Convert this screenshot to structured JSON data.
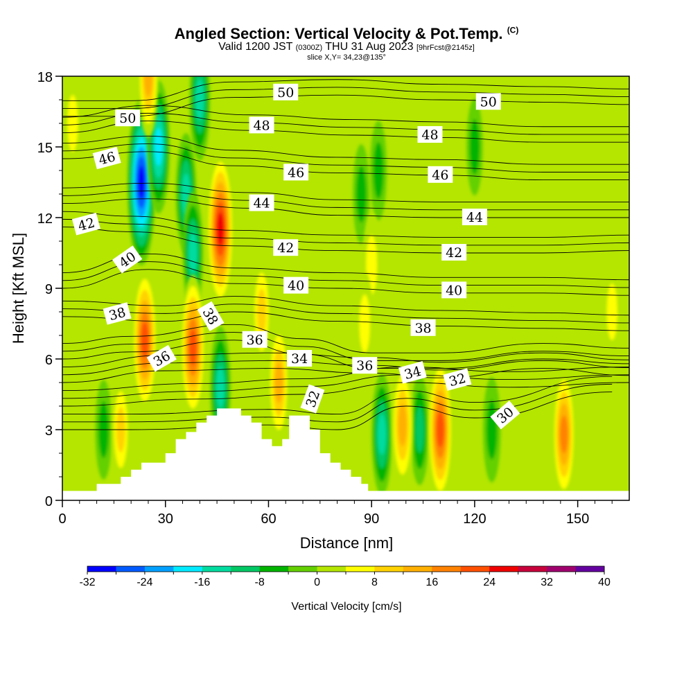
{
  "header": {
    "title": "Angled Section: Vertical Velocity & Pot.Temp.",
    "title_tag": "(C)",
    "valid_prefix": "Valid 1200 JST",
    "valid_utc": "(0300Z)",
    "valid_date": "THU 31 Aug 2023",
    "forecast_tag": "[9hrFcst@2145z]",
    "slice_info": "slice X,Y= 34,23@135°"
  },
  "chart_data": {
    "type": "heatmap",
    "xlabel": "Distance [nm]",
    "ylabel": "Height [Kft MSL]",
    "xlim": [
      0,
      165
    ],
    "ylim": [
      0,
      18
    ],
    "x_ticks": [
      0,
      30,
      60,
      90,
      120,
      150
    ],
    "y_ticks": [
      0,
      3,
      6,
      9,
      12,
      15,
      18
    ],
    "grid": false,
    "colorbar": {
      "label": "Vertical Velocity [cm/s]",
      "ticks": [
        -32,
        -24,
        -16,
        -8,
        0,
        8,
        16,
        24,
        32,
        40
      ],
      "bins": [
        -32,
        -28,
        -24,
        -20,
        -16,
        -12,
        -8,
        -4,
        0,
        4,
        8,
        12,
        16,
        20,
        24,
        28,
        32,
        36,
        40
      ],
      "colors": [
        "#0000ff",
        "#005aff",
        "#00a0ff",
        "#00ebff",
        "#00dca0",
        "#00c864",
        "#00b400",
        "#64d000",
        "#b4e600",
        "#ffff00",
        "#ffd200",
        "#ffb000",
        "#ff8200",
        "#ff5000",
        "#f00000",
        "#c8003c",
        "#a0006e",
        "#6400a0"
      ],
      "placement": "bottom"
    },
    "terrain": [
      [
        0,
        0.4
      ],
      [
        10,
        0.4
      ],
      [
        10,
        0.7
      ],
      [
        17,
        0.7
      ],
      [
        17,
        1.0
      ],
      [
        20,
        1.0
      ],
      [
        20,
        1.3
      ],
      [
        23,
        1.3
      ],
      [
        23,
        1.6
      ],
      [
        26,
        1.6
      ],
      [
        26,
        1.6
      ],
      [
        30,
        1.6
      ],
      [
        30,
        2.0
      ],
      [
        33,
        2.0
      ],
      [
        33,
        2.6
      ],
      [
        36,
        2.6
      ],
      [
        36,
        2.9
      ],
      [
        39,
        2.9
      ],
      [
        39,
        3.3
      ],
      [
        42,
        3.3
      ],
      [
        42,
        3.6
      ],
      [
        45,
        3.6
      ],
      [
        45,
        3.9
      ],
      [
        52,
        3.9
      ],
      [
        52,
        3.6
      ],
      [
        55,
        3.6
      ],
      [
        55,
        3.3
      ],
      [
        58,
        3.3
      ],
      [
        58,
        2.6
      ],
      [
        61,
        2.6
      ],
      [
        61,
        2.3
      ],
      [
        64,
        2.3
      ],
      [
        64,
        2.6
      ],
      [
        66,
        2.6
      ],
      [
        66,
        3.6
      ],
      [
        72,
        3.6
      ],
      [
        72,
        3.0
      ],
      [
        75,
        3.0
      ],
      [
        75,
        2.0
      ],
      [
        78,
        2.0
      ],
      [
        78,
        1.6
      ],
      [
        81,
        1.6
      ],
      [
        81,
        1.3
      ],
      [
        84,
        1.3
      ],
      [
        84,
        1.0
      ],
      [
        87,
        1.0
      ],
      [
        87,
        0.7
      ],
      [
        89,
        0.7
      ],
      [
        89,
        0.4
      ],
      [
        165,
        0.4
      ]
    ],
    "wind_cells": [
      {
        "x": 23,
        "y": 13.5,
        "w": -30
      },
      {
        "x": 28,
        "y": 15.0,
        "w": -18
      },
      {
        "x": 36,
        "y": 13.0,
        "w": -14
      },
      {
        "x": 40,
        "y": 17.0,
        "w": -14
      },
      {
        "x": 38,
        "y": 10.5,
        "w": -14
      },
      {
        "x": 46,
        "y": 4.8,
        "w": -14
      },
      {
        "x": 93,
        "y": 2.8,
        "w": -14
      },
      {
        "x": 104,
        "y": 3.0,
        "w": -10
      },
      {
        "x": 125,
        "y": 3.0,
        "w": -8
      },
      {
        "x": 92,
        "y": 14.0,
        "w": -6
      },
      {
        "x": 87,
        "y": 13.0,
        "w": -6
      },
      {
        "x": 120,
        "y": 15.0,
        "w": -5
      },
      {
        "x": 12,
        "y": 3.0,
        "w": -6
      },
      {
        "x": 25,
        "y": 18.0,
        "w": 14
      },
      {
        "x": 46,
        "y": 11.5,
        "w": 26
      },
      {
        "x": 24,
        "y": 6.8,
        "w": 22
      },
      {
        "x": 38,
        "y": 6.5,
        "w": 22
      },
      {
        "x": 58,
        "y": 8.0,
        "w": 10
      },
      {
        "x": 63,
        "y": 5.0,
        "w": 14
      },
      {
        "x": 90,
        "y": 10.0,
        "w": 8
      },
      {
        "x": 88,
        "y": 7.5,
        "w": 7
      },
      {
        "x": 99,
        "y": 3.2,
        "w": 16
      },
      {
        "x": 110,
        "y": 3.0,
        "w": 22
      },
      {
        "x": 146,
        "y": 2.8,
        "w": 18
      },
      {
        "x": 17,
        "y": 3.0,
        "w": 9
      },
      {
        "x": 3,
        "y": 16.0,
        "w": 6
      },
      {
        "x": 160,
        "y": 8.0,
        "w": 6
      }
    ],
    "theta_contours": [
      {
        "value": 30,
        "labeled": true,
        "points": [
          [
            0,
            3.0
          ],
          [
            20,
            3.0
          ],
          [
            60,
            3.2
          ],
          [
            80,
            3.0
          ],
          [
            100,
            4.0
          ],
          [
            120,
            3.5
          ],
          [
            160,
            4.6
          ]
        ]
      },
      {
        "value": 32,
        "labeled": true,
        "points": [
          [
            0,
            4.0
          ],
          [
            40,
            4.3
          ],
          [
            70,
            4.5
          ],
          [
            100,
            5.0
          ],
          [
            130,
            4.8
          ],
          [
            165,
            5.0
          ]
        ]
      },
      {
        "value": 34,
        "labeled": true,
        "points": [
          [
            0,
            5.0
          ],
          [
            30,
            5.5
          ],
          [
            60,
            5.6
          ],
          [
            90,
            5.4
          ],
          [
            110,
            5.2
          ],
          [
            140,
            5.6
          ],
          [
            165,
            5.3
          ]
        ]
      },
      {
        "value": 36,
        "labeled": true,
        "points": [
          [
            0,
            6.0
          ],
          [
            20,
            6.3
          ],
          [
            50,
            6.8
          ],
          [
            70,
            6.2
          ],
          [
            90,
            5.6
          ],
          [
            110,
            5.6
          ],
          [
            140,
            6.0
          ],
          [
            165,
            5.8
          ]
        ]
      },
      {
        "value": 38,
        "labeled": true,
        "points": [
          [
            0,
            7.8
          ],
          [
            30,
            7.6
          ],
          [
            50,
            8.0
          ],
          [
            80,
            7.6
          ],
          [
            110,
            7.4
          ],
          [
            140,
            7.3
          ],
          [
            165,
            7.2
          ]
        ]
      },
      {
        "value": 40,
        "labeled": true,
        "points": [
          [
            0,
            9.0
          ],
          [
            25,
            9.8
          ],
          [
            50,
            9.2
          ],
          [
            80,
            9.0
          ],
          [
            110,
            8.8
          ],
          [
            140,
            8.8
          ],
          [
            165,
            8.7
          ]
        ]
      },
      {
        "value": 42,
        "labeled": true,
        "points": [
          [
            0,
            11.6
          ],
          [
            20,
            11.4
          ],
          [
            50,
            10.8
          ],
          [
            80,
            10.6
          ],
          [
            110,
            10.5
          ],
          [
            140,
            10.5
          ],
          [
            165,
            10.6
          ]
        ]
      },
      {
        "value": 44,
        "labeled": true,
        "points": [
          [
            0,
            12.6
          ],
          [
            25,
            12.8
          ],
          [
            55,
            12.4
          ],
          [
            80,
            12.1
          ],
          [
            110,
            12.0
          ],
          [
            140,
            12.0
          ],
          [
            165,
            12.0
          ]
        ]
      },
      {
        "value": 46,
        "labeled": true,
        "points": [
          [
            0,
            14.5
          ],
          [
            25,
            14.8
          ],
          [
            50,
            14.2
          ],
          [
            80,
            13.9
          ],
          [
            110,
            13.8
          ],
          [
            140,
            13.6
          ],
          [
            165,
            13.6
          ]
        ]
      },
      {
        "value": 48,
        "labeled": true,
        "points": [
          [
            0,
            15.6
          ],
          [
            25,
            16.1
          ],
          [
            55,
            15.7
          ],
          [
            85,
            15.5
          ],
          [
            110,
            15.4
          ],
          [
            140,
            15.2
          ],
          [
            165,
            15.2
          ]
        ]
      },
      {
        "value": 50,
        "labeled": true,
        "points": [
          [
            0,
            16.3
          ],
          [
            20,
            16.3
          ],
          [
            50,
            17.1
          ],
          [
            80,
            17.2
          ],
          [
            110,
            17.0
          ],
          [
            140,
            16.9
          ],
          [
            165,
            16.8
          ]
        ]
      }
    ],
    "contour_labels": [
      {
        "text": "50",
        "x": 19,
        "y": 16.2,
        "angle": 0
      },
      {
        "text": "50",
        "x": 65,
        "y": 17.3,
        "angle": 0
      },
      {
        "text": "50",
        "x": 124,
        "y": 16.9,
        "angle": 0
      },
      {
        "text": "48",
        "x": 58,
        "y": 15.9,
        "angle": 0
      },
      {
        "text": "48",
        "x": 107,
        "y": 15.5,
        "angle": 0
      },
      {
        "text": "46",
        "x": 13,
        "y": 14.5,
        "angle": -15
      },
      {
        "text": "46",
        "x": 68,
        "y": 13.9,
        "angle": 0
      },
      {
        "text": "46",
        "x": 110,
        "y": 13.8,
        "angle": 0
      },
      {
        "text": "44",
        "x": 58,
        "y": 12.6,
        "angle": 0
      },
      {
        "text": "44",
        "x": 120,
        "y": 12.0,
        "angle": 0
      },
      {
        "text": "42",
        "x": 7,
        "y": 11.7,
        "angle": -15
      },
      {
        "text": "42",
        "x": 65,
        "y": 10.7,
        "angle": 0
      },
      {
        "text": "42",
        "x": 114,
        "y": 10.5,
        "angle": 0
      },
      {
        "text": "40",
        "x": 19,
        "y": 10.2,
        "angle": -35
      },
      {
        "text": "40",
        "x": 68,
        "y": 9.1,
        "angle": 0
      },
      {
        "text": "40",
        "x": 114,
        "y": 8.9,
        "angle": 0
      },
      {
        "text": "38",
        "x": 16,
        "y": 7.9,
        "angle": -15
      },
      {
        "text": "38",
        "x": 43,
        "y": 7.8,
        "angle": 60
      },
      {
        "text": "38",
        "x": 105,
        "y": 7.3,
        "angle": 0
      },
      {
        "text": "36",
        "x": 29,
        "y": 6.0,
        "angle": -30
      },
      {
        "text": "36",
        "x": 56,
        "y": 6.8,
        "angle": 0
      },
      {
        "text": "36",
        "x": 88,
        "y": 5.7,
        "angle": 0
      },
      {
        "text": "34",
        "x": 69,
        "y": 6.0,
        "angle": 0
      },
      {
        "text": "34",
        "x": 102,
        "y": 5.4,
        "angle": -15
      },
      {
        "text": "32",
        "x": 73,
        "y": 4.3,
        "angle": -70
      },
      {
        "text": "32",
        "x": 115,
        "y": 5.1,
        "angle": -15
      },
      {
        "text": "30",
        "x": 129,
        "y": 3.6,
        "angle": -40
      }
    ]
  }
}
